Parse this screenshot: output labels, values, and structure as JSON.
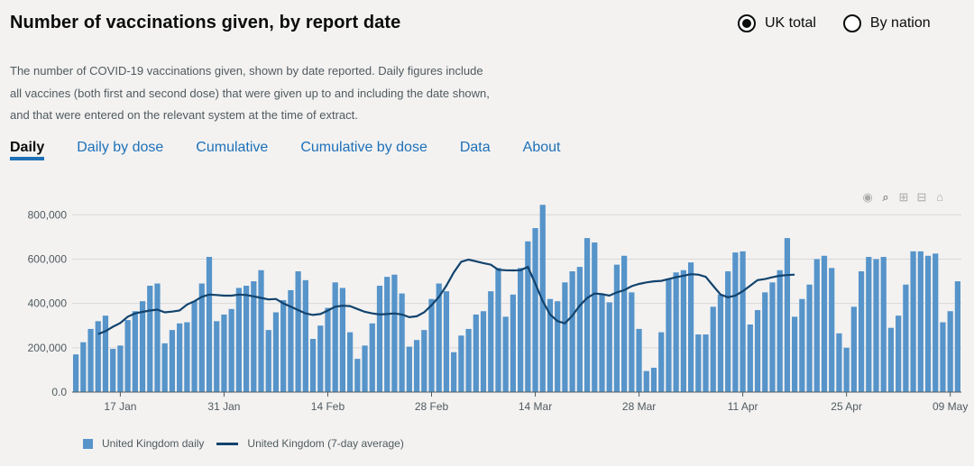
{
  "header": {
    "title": "Number of vaccinations given, by report date"
  },
  "radios": [
    {
      "label": "UK total",
      "selected": true
    },
    {
      "label": "By nation",
      "selected": false
    }
  ],
  "description": "The number of COVID-19 vaccinations given, shown by date reported. Daily figures include all vaccines (both first and second dose) that were given up to and including the date shown, and that were entered on the relevant system at the time of extract.",
  "tabs": [
    {
      "label": "Daily",
      "active": true
    },
    {
      "label": "Daily by dose",
      "active": false
    },
    {
      "label": "Cumulative",
      "active": false
    },
    {
      "label": "Cumulative by dose",
      "active": false
    },
    {
      "label": "Data",
      "active": false
    },
    {
      "label": "About",
      "active": false
    }
  ],
  "modebar": [
    "camera-icon",
    "zoom-icon",
    "zoom-in-icon",
    "zoom-out-icon",
    "home-icon"
  ],
  "colors": {
    "bar": "#5694ca",
    "line": "#12436d",
    "grid": "#d8d8d8"
  },
  "chart_data": {
    "type": "bar",
    "start_date": "2021-01-11",
    "ylim": [
      0,
      850000
    ],
    "yticks": [
      0,
      200000,
      400000,
      600000,
      800000
    ],
    "ytick_labels": [
      "0.0",
      "200,000",
      "400,000",
      "600,000",
      "800,000"
    ],
    "xtick_labels": [
      {
        "label": "17 Jan",
        "date": "2021-01-17"
      },
      {
        "label": "31 Jan",
        "date": "2021-01-31"
      },
      {
        "label": "14 Feb",
        "date": "2021-02-14"
      },
      {
        "label": "28 Feb",
        "date": "2021-02-28"
      },
      {
        "label": "14 Mar",
        "date": "2021-03-14"
      },
      {
        "label": "28 Mar",
        "date": "2021-03-28"
      },
      {
        "label": "11 Apr",
        "date": "2021-04-11"
      },
      {
        "label": "25 Apr",
        "date": "2021-04-25"
      },
      {
        "label": "09 May",
        "date": "2021-05-09"
      }
    ],
    "series": [
      {
        "name": "United Kingdom daily",
        "type": "bar",
        "values": [
          170000,
          225000,
          285000,
          320000,
          345000,
          195000,
          210000,
          325000,
          365000,
          410000,
          480000,
          490000,
          220000,
          280000,
          310000,
          315000,
          410000,
          490000,
          610000,
          320000,
          350000,
          375000,
          470000,
          480000,
          500000,
          550000,
          280000,
          360000,
          415000,
          460000,
          545000,
          505000,
          240000,
          300000,
          380000,
          495000,
          470000,
          270000,
          150000,
          210000,
          310000,
          480000,
          520000,
          530000,
          445000,
          205000,
          235000,
          280000,
          420000,
          490000,
          455000,
          180000,
          255000,
          285000,
          350000,
          365000,
          455000,
          560000,
          340000,
          440000,
          560000,
          680000,
          740000,
          845000,
          420000,
          410000,
          495000,
          545000,
          565000,
          695000,
          675000,
          440000,
          405000,
          575000,
          615000,
          450000,
          285000,
          95000,
          110000,
          270000,
          510000,
          540000,
          550000,
          585000,
          260000,
          260000,
          385000,
          440000,
          545000,
          630000,
          635000,
          305000,
          370000,
          450000,
          495000,
          550000,
          695000,
          340000,
          420000,
          485000,
          600000,
          615000,
          560000,
          265000,
          200000,
          385000,
          545000,
          610000,
          600000,
          610000,
          290000,
          345000,
          485000,
          635000,
          635000,
          615000,
          625000,
          315000,
          365000,
          500000
        ]
      },
      {
        "name": "United Kingdom (7-day average)",
        "type": "line",
        "start_index": 3,
        "values": [
          262000,
          275000,
          295000,
          312000,
          340000,
          355000,
          362000,
          368000,
          372000,
          360000,
          363000,
          368000,
          395000,
          410000,
          430000,
          440000,
          438000,
          435000,
          435000,
          440000,
          438000,
          432000,
          425000,
          418000,
          420000,
          400000,
          385000,
          370000,
          355000,
          348000,
          352000,
          368000,
          385000,
          390000,
          388000,
          375000,
          362000,
          355000,
          350000,
          352000,
          355000,
          350000,
          338000,
          342000,
          360000,
          392000,
          430000,
          480000,
          540000,
          588000,
          598000,
          590000,
          582000,
          575000,
          552000,
          550000,
          549000,
          550000,
          565000,
          490000,
          410000,
          350000,
          320000,
          310000,
          345000,
          390000,
          425000,
          445000,
          442000,
          435000,
          450000,
          460000,
          478000,
          488000,
          495000,
          500000,
          502000,
          510000,
          518000,
          525000,
          532000,
          530000,
          520000,
          480000,
          440000,
          428000,
          435000,
          455000,
          480000,
          505000,
          510000,
          518000,
          525000,
          528000,
          530000
        ]
      }
    ]
  },
  "legend": [
    {
      "label": "United Kingdom daily"
    },
    {
      "label": "United Kingdom (7-day average)"
    }
  ]
}
